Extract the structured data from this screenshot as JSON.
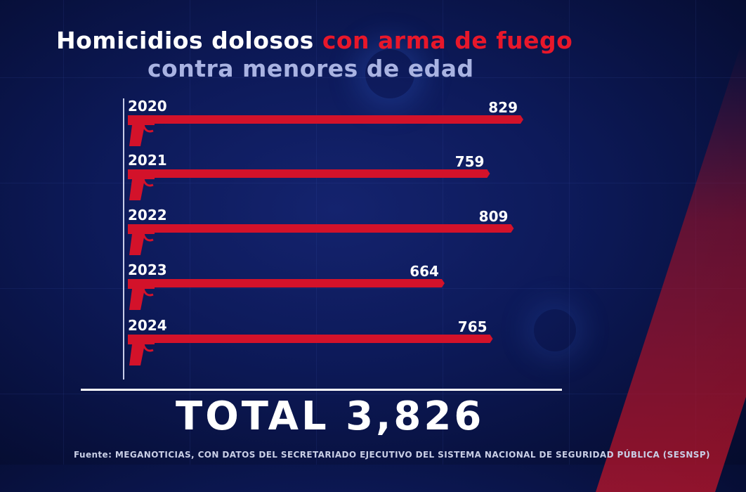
{
  "title": {
    "part1": "Homicidios dolosos",
    "part2": "con arma de fuego",
    "subtitle": "contra menores de edad"
  },
  "colors": {
    "bar": "#d3122a",
    "highlight": "#e8172a",
    "background": "#0d1a5a",
    "subtitle": "#a9b3e2"
  },
  "chart_data": {
    "type": "bar",
    "orientation": "horizontal",
    "categories": [
      "2020",
      "2021",
      "2022",
      "2023",
      "2024"
    ],
    "values": [
      829,
      759,
      809,
      664,
      765
    ],
    "xlim": [
      0,
      829
    ],
    "grid": false,
    "bar_icon": "pistol-icon"
  },
  "total": "TOTAL 3,826",
  "source": "Fuente: MEGANOTICIAS, CON DATOS DEL SECRETARIADO EJECUTIVO DEL SISTEMA NACIONAL DE SEGURIDAD PÚBLICA (SESNSP)"
}
